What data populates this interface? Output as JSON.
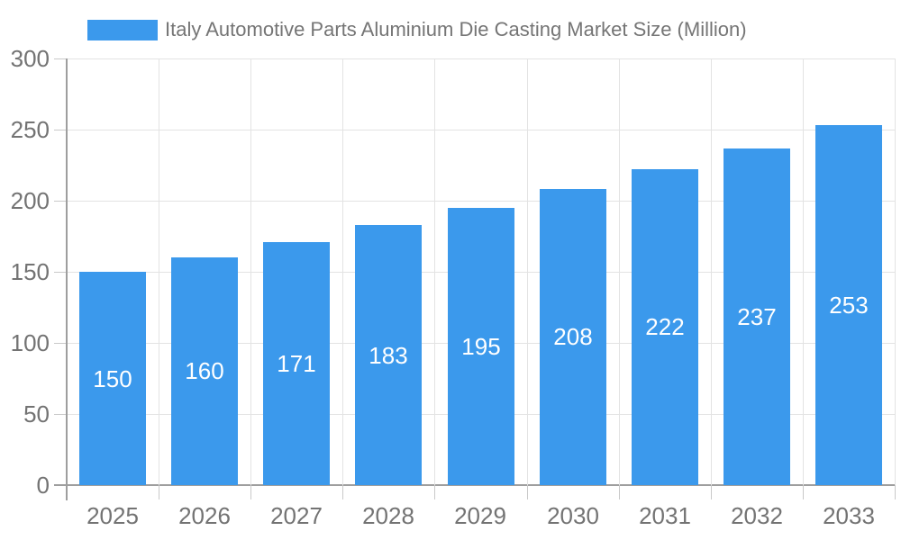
{
  "chart_data": {
    "type": "bar",
    "title": "Italy Automotive Parts Aluminium Die Casting Market Size (Million)",
    "categories": [
      "2025",
      "2026",
      "2027",
      "2028",
      "2029",
      "2030",
      "2031",
      "2032",
      "2033"
    ],
    "series": [
      {
        "name": "Italy Automotive Parts Aluminium Die Casting Market Size (Million)",
        "values": [
          150,
          160,
          171,
          183,
          195,
          208,
          222,
          237,
          253
        ]
      }
    ],
    "value_labels_shown": true,
    "ylim": [
      0,
      300
    ],
    "yticks": [
      0,
      50,
      100,
      150,
      200,
      250,
      300
    ],
    "grid": true,
    "legend_position": "top-left",
    "colors": {
      "bar": "#3b99ec",
      "value_label": "#ffffff",
      "axis_text": "#737373",
      "legend_text": "#757575",
      "gridline": "#e3e3e3",
      "axis_line": "#9e9e9e"
    }
  },
  "legend": {
    "label": "Italy Automotive Parts Aluminium Die Casting Market Size (Million)"
  }
}
